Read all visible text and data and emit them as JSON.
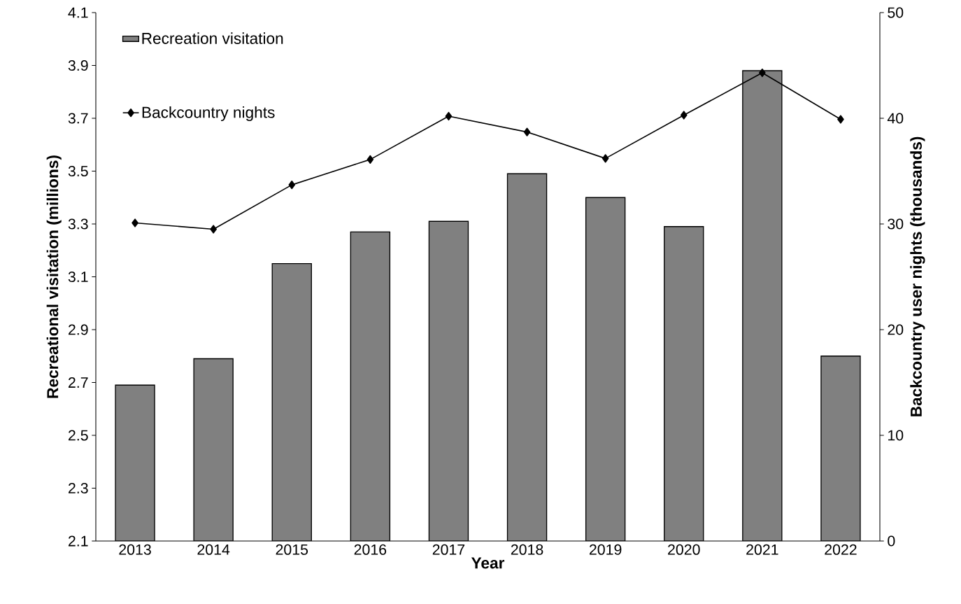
{
  "chart_data": {
    "type": "bar",
    "xlabel": "Year",
    "ylabel": "Recreational visitation (millions)",
    "y2label": "Backcountry user nights (thousands)",
    "categories": [
      "2013",
      "2014",
      "2015",
      "2016",
      "2017",
      "2018",
      "2019",
      "2020",
      "2021",
      "2022"
    ],
    "series": [
      {
        "name": "Recreation visitation",
        "color": "#808080",
        "values": [
          2.69,
          2.79,
          3.15,
          3.27,
          3.31,
          3.49,
          3.4,
          3.29,
          3.88,
          2.8
        ]
      },
      {
        "name": "Backcountry nights",
        "type": "line",
        "axis": "y2",
        "color": "#000000",
        "values": [
          30.1,
          29.5,
          33.7,
          36.1,
          40.2,
          38.7,
          36.2,
          40.3,
          44.3,
          39.9
        ]
      }
    ],
    "ylim": [
      2.1,
      4.1
    ],
    "yticks": [
      2.1,
      2.3,
      2.5,
      2.7,
      2.9,
      3.1,
      3.3,
      3.5,
      3.7,
      3.9,
      4.1
    ],
    "y2lim": [
      0,
      50
    ],
    "y2ticks": [
      0,
      10,
      20,
      30,
      40,
      50
    ],
    "marker": "diamond",
    "legend": "top left"
  }
}
